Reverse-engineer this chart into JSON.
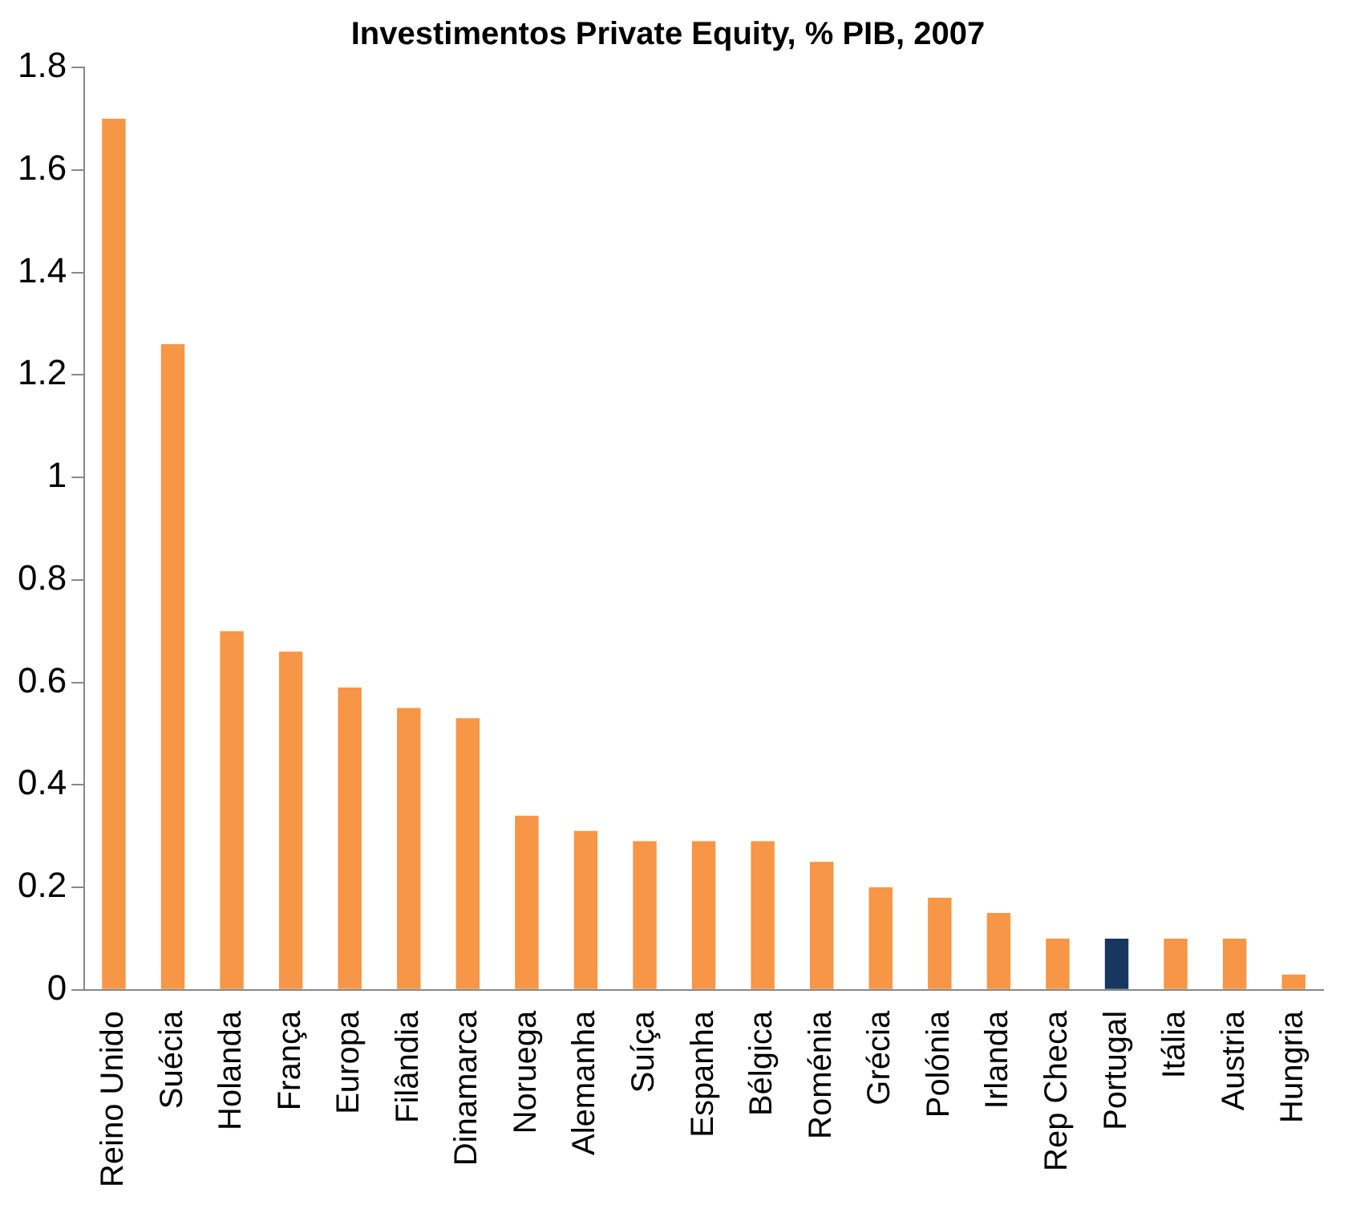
{
  "chart_data": {
    "type": "bar",
    "title": "Investimentos Private Equity, % PIB, 2007",
    "categories": [
      "Reino Unido",
      "Suécia",
      "Holanda",
      "França",
      "Europa",
      "Filândia",
      "Dinamarca",
      "Noruega",
      "Alemanha",
      "Suíça",
      "Espanha",
      "Bélgica",
      "Roménia",
      "Grécia",
      "Polónia",
      "Irlanda",
      "Rep Checa",
      "Portugal",
      "Itália",
      "Austria",
      "Hungria"
    ],
    "values": [
      1.7,
      1.26,
      0.7,
      0.66,
      0.59,
      0.55,
      0.53,
      0.34,
      0.31,
      0.29,
      0.29,
      0.29,
      0.25,
      0.2,
      0.18,
      0.15,
      0.1,
      0.1,
      0.1,
      0.1,
      0.03
    ],
    "colors": [
      "#f79646",
      "#f79646",
      "#f79646",
      "#f79646",
      "#f79646",
      "#f79646",
      "#f79646",
      "#f79646",
      "#f79646",
      "#f79646",
      "#f79646",
      "#f79646",
      "#f79646",
      "#f79646",
      "#f79646",
      "#f79646",
      "#f79646",
      "#17375e",
      "#f79646",
      "#f79646",
      "#f79646"
    ],
    "ylim": [
      0,
      1.8
    ],
    "yticks": [
      0,
      0.2,
      0.4,
      0.6,
      0.8,
      1,
      1.2,
      1.4,
      1.6,
      1.8
    ],
    "grid": false,
    "legend": false
  }
}
